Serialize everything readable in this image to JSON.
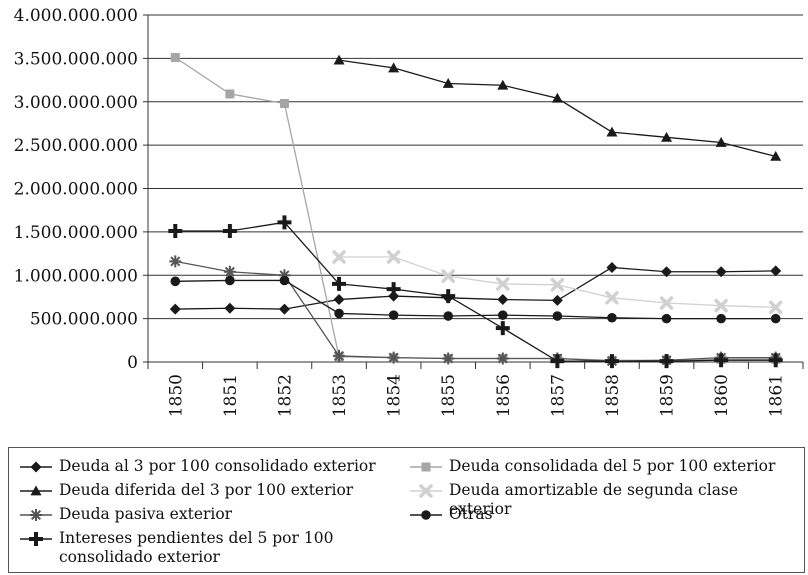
{
  "chart_data": {
    "type": "line",
    "title": "",
    "xlabel": "",
    "ylabel": "",
    "x": [
      "1850",
      "1851",
      "1852",
      "1853",
      "1854",
      "1855",
      "1856",
      "1857",
      "1858",
      "1859",
      "1860",
      "1861"
    ],
    "ylim": [
      0,
      4000000000
    ],
    "yticks": [
      0,
      500000000,
      1000000000,
      1500000000,
      2000000000,
      2500000000,
      3000000000,
      3500000000,
      4000000000
    ],
    "ytick_labels": [
      "0",
      "500.000.000",
      "1.000.000.000",
      "1.500.000.000",
      "2.000.000.000",
      "2.500.000.000",
      "3.000.000.000",
      "3.500.000.000",
      "4.000.000.000"
    ],
    "grid": "horizontal",
    "legend_position": "bottom",
    "series": [
      {
        "name": "Deuda al 3 por 100 consolidado exterior",
        "marker": "diamond",
        "color": "#1a1a1a",
        "values": [
          610000000,
          620000000,
          610000000,
          720000000,
          760000000,
          740000000,
          720000000,
          710000000,
          1090000000,
          1040000000,
          1040000000,
          1050000000
        ]
      },
      {
        "name": "Deuda consolidada del 5 por 100 exterior",
        "marker": "square",
        "color": "#a6a6a6",
        "values": [
          3510000000,
          3090000000,
          2980000000,
          60000000,
          50000000,
          40000000,
          40000000,
          40000000,
          20000000,
          20000000,
          30000000,
          30000000
        ]
      },
      {
        "name": "Deuda diferida del 3 por 100 exterior",
        "marker": "triangle",
        "color": "#1a1a1a",
        "values": [
          null,
          null,
          null,
          3480000000,
          3390000000,
          3210000000,
          3190000000,
          3040000000,
          2650000000,
          2590000000,
          2530000000,
          2370000000
        ]
      },
      {
        "name": "Deuda amortizable de segunda clase exterior",
        "marker": "x",
        "color": "#d0d0d0",
        "values": [
          null,
          null,
          null,
          1210000000,
          1210000000,
          990000000,
          900000000,
          890000000,
          740000000,
          680000000,
          650000000,
          630000000
        ]
      },
      {
        "name": "Deuda pasiva exterior",
        "marker": "star",
        "color": "#555555",
        "values": [
          1160000000,
          1040000000,
          1000000000,
          70000000,
          50000000,
          40000000,
          40000000,
          40000000,
          10000000,
          20000000,
          50000000,
          50000000
        ]
      },
      {
        "name": "Otras",
        "marker": "circle",
        "color": "#1a1a1a",
        "values": [
          930000000,
          940000000,
          940000000,
          560000000,
          540000000,
          530000000,
          540000000,
          530000000,
          510000000,
          500000000,
          500000000,
          500000000
        ]
      },
      {
        "name": "Intereses pendientes del 5 por 100\nconsolidado exterior",
        "marker": "cross",
        "color": "#1a1a1a",
        "values": [
          1510000000,
          1510000000,
          1610000000,
          900000000,
          840000000,
          760000000,
          390000000,
          10000000,
          10000000,
          10000000,
          20000000,
          20000000
        ]
      }
    ]
  }
}
